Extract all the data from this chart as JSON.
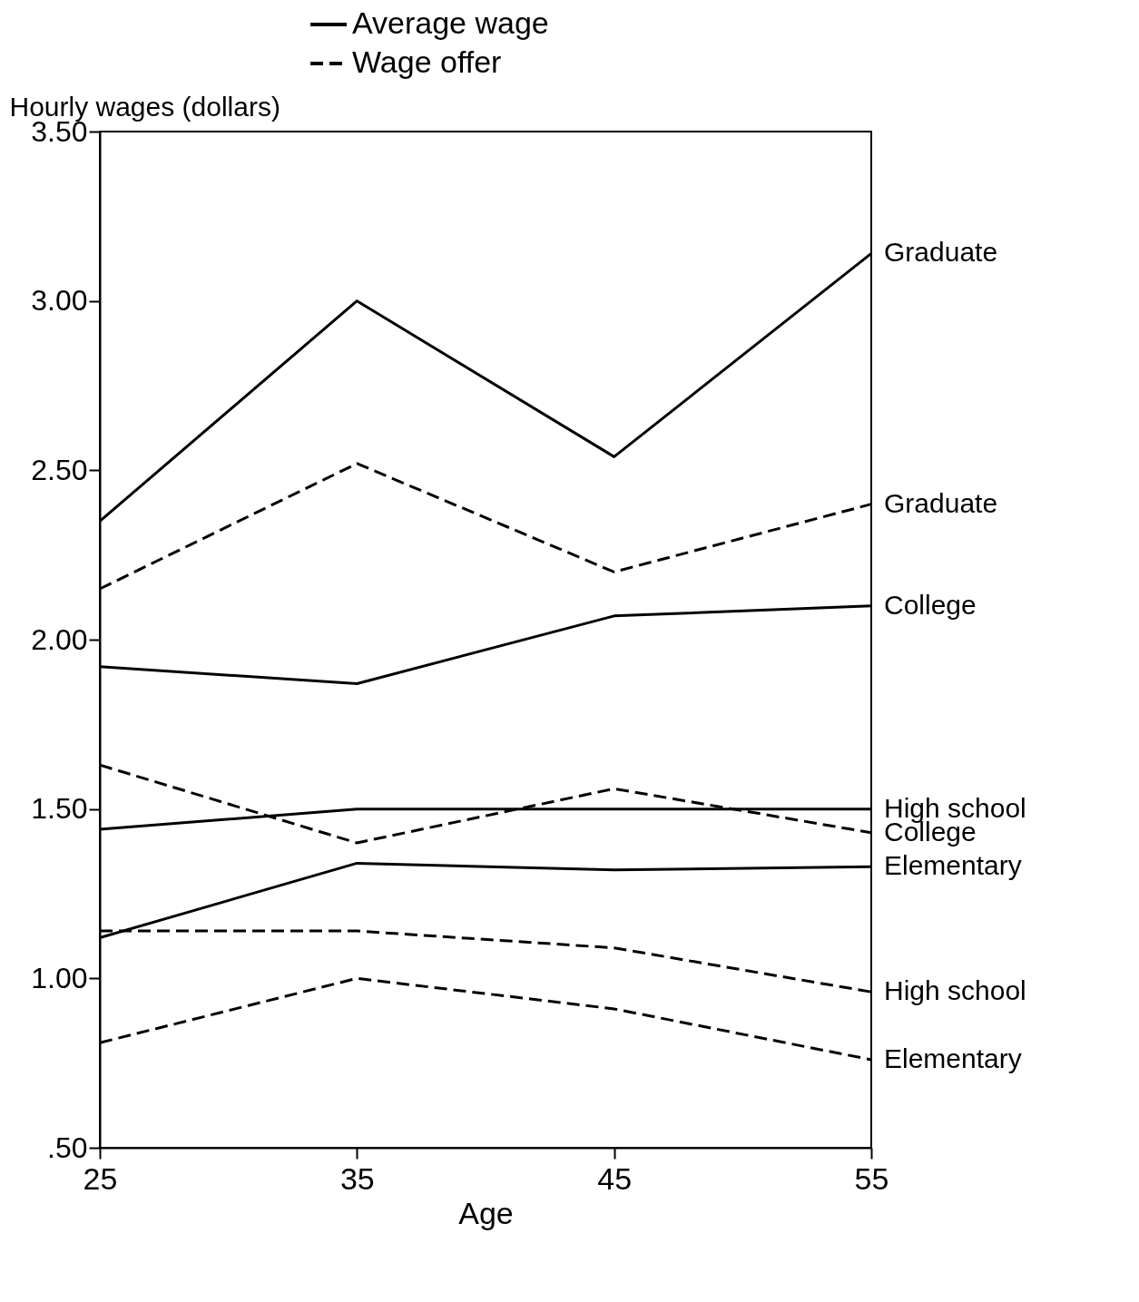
{
  "chart_data": {
    "type": "line",
    "xlabel": "Age",
    "ylabel": "Hourly wages (dollars)",
    "x": [
      25,
      35,
      45,
      55
    ],
    "xlim": [
      25,
      55
    ],
    "xticks": [
      25,
      35,
      45,
      55
    ],
    "ylim": [
      0.5,
      3.5
    ],
    "yticks": [
      {
        "value": 0.5,
        "label": ".50"
      },
      {
        "value": 1,
        "label": "1.00"
      },
      {
        "value": 1.5,
        "label": "1.50"
      },
      {
        "value": 2,
        "label": "2.00"
      },
      {
        "value": 2.5,
        "label": "2.50"
      },
      {
        "value": 3,
        "label": "3.00"
      },
      {
        "value": 3.5,
        "label": "3.50"
      }
    ],
    "grid": false,
    "legend": "right",
    "marker": "none",
    "annotations": [
      "Average wage",
      "Wage offer"
    ],
    "series": [
      {
        "name": "Graduate",
        "color": "#000000",
        "line_style": "solid",
        "values": [
          2.35,
          3.0,
          2.54,
          3.14
        ]
      },
      {
        "name": "College",
        "color": "#000000",
        "line_style": "solid",
        "values": [
          1.92,
          1.87,
          2.07,
          2.1
        ]
      },
      {
        "name": "High school",
        "color": "#000000",
        "line_style": "solid",
        "values": [
          1.44,
          1.5,
          1.5,
          1.5
        ]
      },
      {
        "name": "Elementary",
        "color": "#000000",
        "line_style": "solid",
        "values": [
          1.12,
          1.34,
          1.32,
          1.33
        ]
      },
      {
        "name": "Graduate",
        "color": "#000000",
        "line_style": "dashed",
        "values": [
          2.15,
          2.52,
          2.2,
          2.4
        ]
      },
      {
        "name": "College",
        "color": "#000000",
        "line_style": "dashed",
        "values": [
          1.63,
          1.4,
          1.56,
          1.43
        ]
      },
      {
        "name": "High school",
        "color": "#000000",
        "line_style": "dashed",
        "values": [
          1.14,
          1.14,
          1.09,
          0.96
        ]
      },
      {
        "name": "Elementary",
        "color": "#000000",
        "line_style": "dashed",
        "values": [
          0.81,
          1.0,
          0.91,
          0.76
        ]
      }
    ]
  }
}
